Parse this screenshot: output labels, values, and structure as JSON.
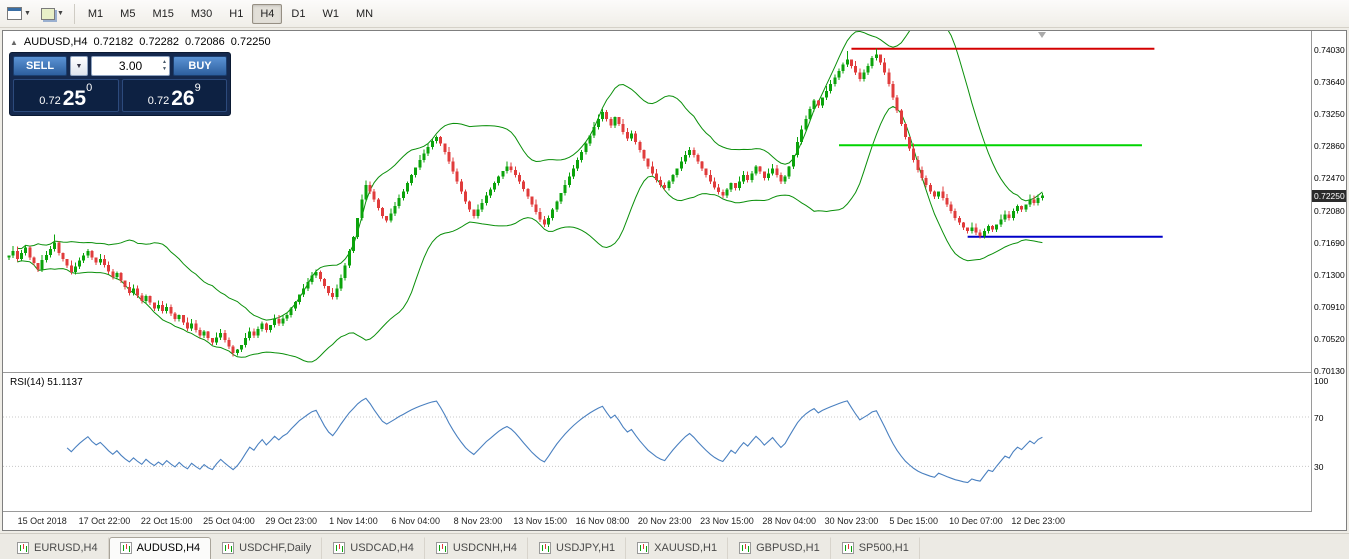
{
  "toolbar": {
    "timeframes": [
      "M1",
      "M5",
      "M15",
      "M30",
      "H1",
      "H4",
      "D1",
      "W1",
      "MN"
    ],
    "active_timeframe": "H4"
  },
  "icons": {
    "caret_down": "▼",
    "spinner_up": "▲",
    "spinner_down": "▼",
    "panel_toggle": "▲"
  },
  "chart": {
    "symbol_period": "AUDUSD,H4",
    "ohlc": {
      "open": "0.72182",
      "high": "0.72282",
      "low": "0.72086",
      "close": "0.72250"
    }
  },
  "trade_panel": {
    "sell_label": "SELL",
    "buy_label": "BUY",
    "volume": "3.00",
    "bid": {
      "big_figure": "0.72",
      "pips": "25",
      "pipette": "0"
    },
    "ask": {
      "big_figure": "0.72",
      "pips": "26",
      "pipette": "9"
    }
  },
  "price_axis": {
    "labels": [
      "0.74030",
      "0.73640",
      "0.73250",
      "0.72860",
      "0.72470",
      "0.72080",
      "0.71690",
      "0.71300",
      "0.70910",
      "0.70520",
      "0.70130"
    ],
    "current_price": "0.72250"
  },
  "time_axis": {
    "labels": [
      "15 Oct 2018",
      "17 Oct 22:00",
      "22 Oct 15:00",
      "25 Oct 04:00",
      "29 Oct 23:00",
      "1 Nov 14:00",
      "6 Nov 04:00",
      "8 Nov 23:00",
      "13 Nov 15:00",
      "16 Nov 08:00",
      "20 Nov 23:00",
      "23 Nov 15:00",
      "28 Nov 04:00",
      "30 Nov 23:00",
      "5 Dec 15:00",
      "10 Dec 07:00",
      "12 Dec 23:00"
    ]
  },
  "rsi": {
    "label": "RSI(14) 51.1137",
    "value": 51.1137,
    "levels": [
      100,
      70,
      30
    ]
  },
  "tabs": [
    {
      "label": "EURUSD,H4",
      "active": false
    },
    {
      "label": "AUDUSD,H4",
      "active": true
    },
    {
      "label": "USDCHF,Daily",
      "active": false
    },
    {
      "label": "USDCAD,H4",
      "active": false
    },
    {
      "label": "USDCNH,H4",
      "active": false
    },
    {
      "label": "USDJPY,H1",
      "active": false
    },
    {
      "label": "XAUUSD,H1",
      "active": false
    },
    {
      "label": "GBPUSD,H1",
      "active": false
    },
    {
      "label": "SP500,H1",
      "active": false
    }
  ],
  "colors": {
    "candle_up": "#0ba30b",
    "candle_down": "#e03c3c",
    "bands": "#0a8f0a",
    "rsi_line": "#4a80c0",
    "hline_red": "#d40000",
    "hline_green": "#00d400",
    "hline_blue": "#0000c8",
    "price_tag_bg": "#2b2b2b"
  },
  "chart_data": {
    "type": "candlestick",
    "symbol": "AUDUSD",
    "timeframe": "H4",
    "price_scale": 0.0001,
    "ylim": [
      0.7011,
      0.74245
    ],
    "first_open": 7150,
    "closes": [
      7152,
      7158,
      7148,
      7155,
      7162,
      7150,
      7143,
      7135,
      7147,
      7153,
      7160,
      7168,
      7155,
      7148,
      7140,
      7132,
      7139,
      7146,
      7152,
      7158,
      7150,
      7144,
      7148,
      7141,
      7133,
      7126,
      7131,
      7122,
      7114,
      7107,
      7112,
      7104,
      7097,
      7103,
      7095,
      7088,
      7092,
      7085,
      7090,
      7082,
      7075,
      7080,
      7071,
      7064,
      7070,
      7062,
      7055,
      7060,
      7052,
      7047,
      7053,
      7058,
      7050,
      7042,
      7034,
      7038,
      7044,
      7052,
      7060,
      7055,
      7063,
      7070,
      7062,
      7068,
      7075,
      7070,
      7076,
      7080,
      7088,
      7096,
      7105,
      7112,
      7120,
      7128,
      7132,
      7124,
      7115,
      7107,
      7102,
      7112,
      7125,
      7140,
      7158,
      7175,
      7198,
      7220,
      7238,
      7230,
      7220,
      7210,
      7200,
      7195,
      7203,
      7212,
      7222,
      7230,
      7240,
      7250,
      7259,
      7268,
      7276,
      7284,
      7291,
      7296,
      7288,
      7278,
      7266,
      7254,
      7242,
      7230,
      7218,
      7208,
      7200,
      7208,
      7216,
      7225,
      7232,
      7240,
      7248,
      7255,
      7260,
      7256,
      7250,
      7242,
      7233,
      7224,
      7214,
      7205,
      7196,
      7190,
      7198,
      7208,
      7218,
      7228,
      7238,
      7248,
      7258,
      7268,
      7278,
      7288,
      7298,
      7308,
      7318,
      7326,
      7318,
      7310,
      7320,
      7312,
      7302,
      7294,
      7300,
      7290,
      7280,
      7270,
      7260,
      7252,
      7244,
      7238,
      7234,
      7242,
      7250,
      7258,
      7266,
      7274,
      7280,
      7274,
      7266,
      7258,
      7250,
      7242,
      7235,
      7229,
      7225,
      7232,
      7240,
      7234,
      7242,
      7250,
      7244,
      7252,
      7260,
      7254,
      7246,
      7252,
      7258,
      7250,
      7242,
      7248,
      7260,
      7274,
      7290,
      7305,
      7318,
      7330,
      7340,
      7334,
      7344,
      7352,
      7360,
      7368,
      7376,
      7384,
      7390,
      7382,
      7374,
      7366,
      7374,
      7382,
      7392,
      7396,
      7386,
      7374,
      7360,
      7344,
      7328,
      7312,
      7296,
      7282,
      7268,
      7256,
      7246,
      7238,
      7230,
      7224,
      7230,
      7222,
      7214,
      7206,
      7198,
      7192,
      7186,
      7182,
      7186,
      7180,
      7176,
      7182,
      7188,
      7184,
      7190,
      7196,
      7202,
      7198,
      7206,
      7212,
      7208,
      7214,
      7220,
      7216,
      7222,
      7225
    ],
    "wick_overrides": {
      "11": {
        "high": 7178
      },
      "54": {
        "low": 7030
      },
      "202": {
        "high": 7400
      },
      "209": {
        "high": 7403
      }
    },
    "hlines": [
      {
        "name": "resistance-line-red",
        "price": 0.7403,
        "from_candle": 203,
        "to_candle": 276,
        "color_key": "hline_red",
        "width": 2
      },
      {
        "name": "level-line-green",
        "price": 0.7286,
        "from_candle": 200,
        "to_candle": 273,
        "color_key": "hline_green",
        "width": 2
      },
      {
        "name": "support-line-blue",
        "price": 0.7175,
        "from_candle": 231,
        "to_candle": 278,
        "color_key": "hline_blue",
        "width": 2
      }
    ],
    "indicators": [
      {
        "name": "Bollinger Bands",
        "period": 20,
        "deviation": 2
      },
      {
        "name": "RSI",
        "period": 14,
        "value": 51.1137,
        "ylim": [
          0,
          100
        ],
        "levels": [
          70,
          30
        ]
      }
    ]
  }
}
